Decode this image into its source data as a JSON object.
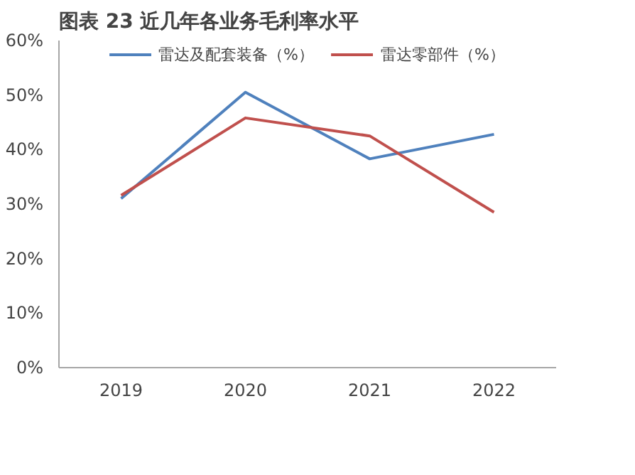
{
  "chart_data": {
    "type": "line",
    "title": "图表 23 近几年各业务毛利率水平",
    "categories": [
      "2019",
      "2020",
      "2021",
      "2022"
    ],
    "series": [
      {
        "name": "雷达及配套装备（%）",
        "color": "#4f81bd",
        "values": [
          31,
          50.5,
          38.3,
          42.8
        ]
      },
      {
        "name": "雷达零部件（%）",
        "color": "#c0504d",
        "values": [
          31.6,
          45.8,
          42.5,
          28.5
        ]
      }
    ],
    "ylim": [
      0,
      60
    ],
    "yticks": [
      {
        "value": 0,
        "label": "0%"
      },
      {
        "value": 10,
        "label": "10%"
      },
      {
        "value": 20,
        "label": "20%"
      },
      {
        "value": 30,
        "label": "30%"
      },
      {
        "value": 40,
        "label": "40%"
      },
      {
        "value": 50,
        "label": "50%"
      },
      {
        "value": 60,
        "label": "60%"
      }
    ],
    "grid": false,
    "legend": "top",
    "marker": "none",
    "line_style": "solid"
  }
}
